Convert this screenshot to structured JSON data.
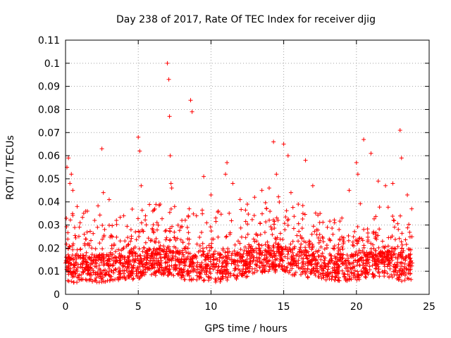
{
  "chart_data": {
    "type": "scatter",
    "title": "Day 238 of 2017, Rate Of TEC Index for receiver djig",
    "xlabel": "GPS time / hours",
    "ylabel": "ROTI / TECUs",
    "xlim": [
      0,
      25
    ],
    "ylim": [
      0,
      0.11
    ],
    "xticks": [
      "0",
      "5",
      "10",
      "15",
      "20",
      "25"
    ],
    "yticks": [
      "0",
      "0.01",
      "0.02",
      "0.03",
      "0.04",
      "0.05",
      "0.06",
      "0.07",
      "0.08",
      "0.09",
      "0.1",
      "0.11"
    ],
    "grid": true,
    "marker": "+",
    "color": "#ff0000",
    "series": [
      {
        "name": "ROTI",
        "description": "dense band of points across 0–24 h, mostly 0.005–0.03 TECU; representative outliers listed",
        "x": [
          0.1,
          0.2,
          0.3,
          0.4,
          0.5,
          0.8,
          1.0,
          1.5,
          2.0,
          2.5,
          2.6,
          3.0,
          3.5,
          4.0,
          4.5,
          5.0,
          5.1,
          5.2,
          5.5,
          6.0,
          6.5,
          7.0,
          7.1,
          7.15,
          7.2,
          7.25,
          7.3,
          7.5,
          8.0,
          8.5,
          8.6,
          8.7,
          9.0,
          9.5,
          10.0,
          10.5,
          11.0,
          11.1,
          11.5,
          12.0,
          12.5,
          13.0,
          13.5,
          14.0,
          14.3,
          14.5,
          15.0,
          15.3,
          15.5,
          16.0,
          16.5,
          17.0,
          17.5,
          18.0,
          18.5,
          19.0,
          19.5,
          20.0,
          20.1,
          20.5,
          21.0,
          21.5,
          22.0,
          22.5,
          23.0,
          23.1,
          23.5,
          23.8
        ],
        "y": [
          0.055,
          0.059,
          0.048,
          0.052,
          0.045,
          0.038,
          0.031,
          0.036,
          0.032,
          0.063,
          0.044,
          0.041,
          0.032,
          0.034,
          0.028,
          0.068,
          0.062,
          0.047,
          0.034,
          0.036,
          0.039,
          0.1,
          0.093,
          0.077,
          0.06,
          0.048,
          0.046,
          0.038,
          0.032,
          0.037,
          0.084,
          0.079,
          0.034,
          0.051,
          0.043,
          0.036,
          0.052,
          0.057,
          0.048,
          0.041,
          0.039,
          0.042,
          0.045,
          0.046,
          0.066,
          0.052,
          0.065,
          0.06,
          0.044,
          0.039,
          0.058,
          0.047,
          0.035,
          0.029,
          0.031,
          0.033,
          0.045,
          0.057,
          0.052,
          0.067,
          0.061,
          0.049,
          0.047,
          0.048,
          0.071,
          0.059,
          0.043,
          0.037
        ]
      }
    ]
  }
}
